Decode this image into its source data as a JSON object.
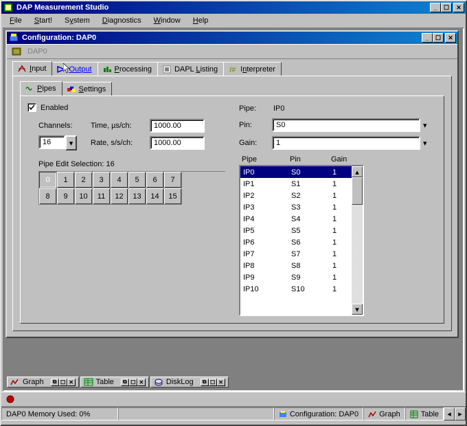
{
  "app": {
    "title": "DAP Measurement Studio",
    "menubar": [
      {
        "label": "File",
        "u": 0
      },
      {
        "label": "Start!",
        "u": 0
      },
      {
        "label": "System",
        "u": 1
      },
      {
        "label": "Diagnostics",
        "u": 0
      },
      {
        "label": "Window",
        "u": 0
      },
      {
        "label": "Help",
        "u": 0
      }
    ]
  },
  "config_window": {
    "title": "Configuration: DAP0",
    "device": "DAP0",
    "tabs": [
      {
        "label": "Input",
        "u": 0,
        "color": "#a00000"
      },
      {
        "label": "Output",
        "u": 0,
        "color": "#0000ff"
      },
      {
        "label": "Processing",
        "u": 0,
        "color": "#008000"
      },
      {
        "label": "DAPL Listing",
        "u": 5,
        "color": "#000"
      },
      {
        "label": "Interpreter",
        "u": 1,
        "color": "#808000"
      }
    ],
    "subtabs": [
      {
        "label": "Pipes",
        "u": 0
      },
      {
        "label": "Settings",
        "u": 0
      }
    ],
    "enabled_label": "Enabled",
    "enabled_checked": true,
    "channels_label": "Channels:",
    "channels_value": "16",
    "time_label": "Time, µs/ch:",
    "time_value": "1000.00",
    "rate_label": "Rate, s/s/ch:",
    "rate_value": "1000.00",
    "pipe_edit_label": "Pipe Edit Selection: 16",
    "pipe_grid": [
      "0",
      "1",
      "2",
      "3",
      "4",
      "5",
      "6",
      "7",
      "8",
      "9",
      "10",
      "11",
      "12",
      "13",
      "14",
      "15"
    ],
    "pipe_grid_selected": 0,
    "pipe_label": "Pipe:",
    "pipe_value": "IP0",
    "pin_label": "Pin:",
    "pin_value": "S0",
    "gain_label": "Gain:",
    "gain_value": "1",
    "list_headers": [
      "Pipe",
      "Pin",
      "Gain"
    ],
    "list_rows": [
      {
        "pipe": "IP0",
        "pin": "S0",
        "gain": "1",
        "sel": true
      },
      {
        "pipe": "IP1",
        "pin": "S1",
        "gain": "1"
      },
      {
        "pipe": "IP2",
        "pin": "S2",
        "gain": "1"
      },
      {
        "pipe": "IP3",
        "pin": "S3",
        "gain": "1"
      },
      {
        "pipe": "IP4",
        "pin": "S4",
        "gain": "1"
      },
      {
        "pipe": "IP5",
        "pin": "S5",
        "gain": "1"
      },
      {
        "pipe": "IP6",
        "pin": "S6",
        "gain": "1"
      },
      {
        "pipe": "IP7",
        "pin": "S7",
        "gain": "1"
      },
      {
        "pipe": "IP8",
        "pin": "S8",
        "gain": "1"
      },
      {
        "pipe": "IP9",
        "pin": "S9",
        "gain": "1"
      },
      {
        "pipe": "IP10",
        "pin": "S10",
        "gain": "1"
      }
    ]
  },
  "taskbar": [
    {
      "label": "Graph",
      "color": "#a00000"
    },
    {
      "label": "Table",
      "color": "#008000"
    },
    {
      "label": "DiskLog",
      "color": "#000080"
    }
  ],
  "statusbar": {
    "memory": "DAP0 Memory Used:  0%",
    "items": [
      {
        "label": "Configuration: DAP0"
      },
      {
        "label": "Graph"
      },
      {
        "label": "Table"
      }
    ]
  },
  "colors": {
    "titlebar_start": "#000080",
    "titlebar_end": "#1084d0",
    "face": "#c0c0c0",
    "highlight": "#ffffff",
    "shadow": "#808080",
    "darkshadow": "#404040",
    "selection": "#000080"
  }
}
